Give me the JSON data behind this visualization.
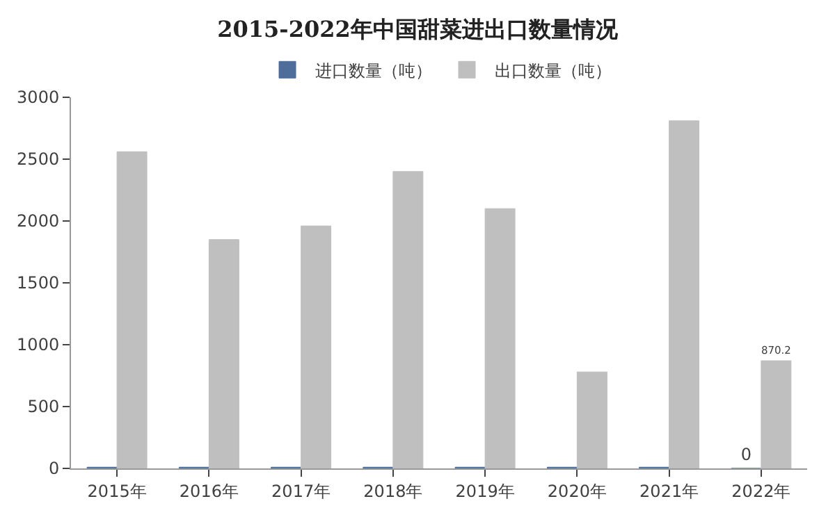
{
  "chart_data": {
    "type": "bar",
    "title": "2015-2022年中国甜菜进出口数量情况",
    "categories": [
      "2015年",
      "2016年",
      "2017年",
      "2018年",
      "2019年",
      "2020年",
      "2021年",
      "2022年"
    ],
    "series": [
      {
        "name": "进口数量（吨）",
        "color": "#4f6d9a",
        "values": [
          10,
          10,
          10,
          10,
          10,
          10,
          10,
          0
        ],
        "value_labels": [
          null,
          null,
          null,
          null,
          null,
          null,
          null,
          "0"
        ]
      },
      {
        "name": "出口数量（吨）",
        "color": "#bfbfbf",
        "values": [
          2560,
          1850,
          1960,
          2400,
          2100,
          780,
          2810,
          870.2
        ],
        "value_labels": [
          null,
          null,
          null,
          null,
          null,
          null,
          null,
          "870.2"
        ]
      }
    ],
    "ylim": [
      0,
      3000
    ],
    "yticks": [
      0,
      500,
      1000,
      1500,
      2000,
      2500,
      3000
    ],
    "grid": false,
    "legend": "top"
  }
}
